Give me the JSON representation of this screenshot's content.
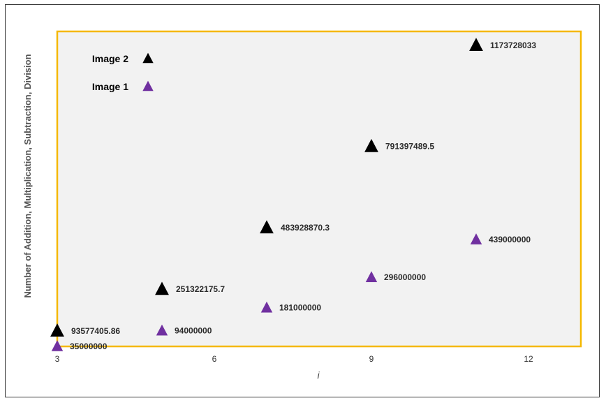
{
  "chart_data": {
    "type": "scatter",
    "title": "",
    "xlabel": "i",
    "ylabel": "Number of Addition, Multiplication, Subtraction, Division",
    "xlim": [
      3,
      13
    ],
    "ylim": [
      35000000,
      1200000000
    ],
    "xticks": [
      "3",
      "6",
      "9",
      "12"
    ],
    "grid": false,
    "legend_position": "top-left",
    "plot_background": "#f2f2f2",
    "plot_border_color": "#f5b800",
    "series": [
      {
        "name": "Image 2",
        "color": "#000000",
        "marker": "triangle",
        "x": [
          3,
          5,
          7,
          9,
          11
        ],
        "y": [
          93577405.86,
          251322175.7,
          483928870.3,
          791397489.5,
          1173728033
        ],
        "labels": [
          "93577405.86",
          "251322175.7",
          "483928870.3",
          "791397489.5",
          "1173728033"
        ]
      },
      {
        "name": "Image 1",
        "color": "#7030a0",
        "marker": "triangle",
        "x": [
          3,
          5,
          7,
          9,
          11
        ],
        "y": [
          35000000,
          94000000,
          181000000,
          296000000,
          439000000
        ],
        "labels": [
          "35000000",
          "94000000",
          "181000000",
          "296000000",
          "439000000"
        ]
      }
    ]
  }
}
